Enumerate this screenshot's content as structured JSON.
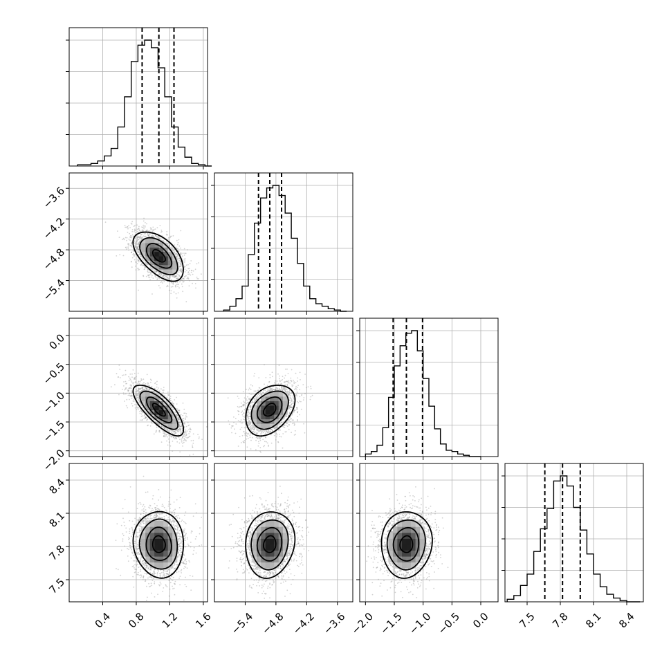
{
  "chart_data": {
    "type": "corner",
    "grid": true,
    "colors": {
      "ink": "#000000",
      "grid": "#b0b0b0",
      "scatter": "#9a9a9a"
    },
    "parameters": [
      {
        "range": [
          0.0,
          1.65
        ],
        "ticks": [
          0.4,
          0.8,
          1.2,
          1.6
        ],
        "tick_labels": [
          "0.4",
          "0.8",
          "1.2",
          "1.6"
        ],
        "mean": 1.07,
        "sd": 0.15,
        "quantiles": [
          0.87,
          1.07,
          1.25
        ]
      },
      {
        "range": [
          -6.0,
          -3.3
        ],
        "ticks": [
          -5.4,
          -4.8,
          -4.2,
          -3.6
        ],
        "tick_labels": [
          "−5.4",
          "−4.8",
          "−4.2",
          "−3.6"
        ],
        "mean": -4.92,
        "sd": 0.24,
        "quantiles": [
          -5.14,
          -4.92,
          -4.69
        ]
      },
      {
        "range": [
          -2.1,
          0.3
        ],
        "ticks": [
          -2.0,
          -1.5,
          -1.0,
          -0.5,
          0.0
        ],
        "tick_labels": [
          "−2.0",
          "−1.5",
          "−1.0",
          "−0.5",
          "0.0"
        ],
        "mean": -1.29,
        "sd": 0.22,
        "quantiles": [
          -1.52,
          -1.29,
          -1.01
        ]
      },
      {
        "range": [
          7.3,
          8.55
        ],
        "ticks": [
          7.5,
          7.8,
          8.1,
          8.4
        ],
        "tick_labels": [
          "7.5",
          "7.8",
          "8.1",
          "8.4"
        ],
        "mean": 7.82,
        "sd": 0.15,
        "quantiles": [
          7.66,
          7.82,
          7.98
        ]
      }
    ],
    "histograms": [
      {
        "param": 0,
        "edges_start": 0.1,
        "bin_width": 0.08,
        "counts": [
          1,
          1,
          2,
          4,
          8,
          14,
          31,
          55,
          83,
          96,
          100,
          94,
          78,
          55,
          31,
          15,
          7,
          2,
          1,
          0
        ]
      },
      {
        "param": 1,
        "edges_start": -5.82,
        "bin_width": 0.12,
        "counts": [
          1,
          4,
          10,
          20,
          45,
          70,
          90,
          98,
          100,
          92,
          78,
          58,
          38,
          20,
          10,
          6,
          4,
          2,
          1,
          0
        ]
      },
      {
        "param": 2,
        "edges_start": -2.0,
        "bin_width": 0.1,
        "counts": [
          2,
          4,
          9,
          23,
          47,
          72,
          88,
          98,
          100,
          84,
          62,
          40,
          22,
          10,
          5,
          4,
          2,
          1,
          0,
          0
        ]
      },
      {
        "param": 3,
        "edges_start": 7.32,
        "bin_width": 0.06,
        "counts": [
          2,
          5,
          13,
          22,
          40,
          58,
          74,
          96,
          100,
          92,
          75,
          57,
          38,
          22,
          12,
          6,
          3,
          1,
          0,
          0
        ]
      }
    ],
    "correlations": [
      {
        "row": 1,
        "col": 0,
        "rho": -0.55
      },
      {
        "row": 2,
        "col": 0,
        "rho": -0.75
      },
      {
        "row": 2,
        "col": 1,
        "rho": 0.35
      },
      {
        "row": 3,
        "col": 0,
        "rho": -0.05
      },
      {
        "row": 3,
        "col": 1,
        "rho": 0.1
      },
      {
        "row": 3,
        "col": 2,
        "rho": 0.05
      }
    ]
  }
}
